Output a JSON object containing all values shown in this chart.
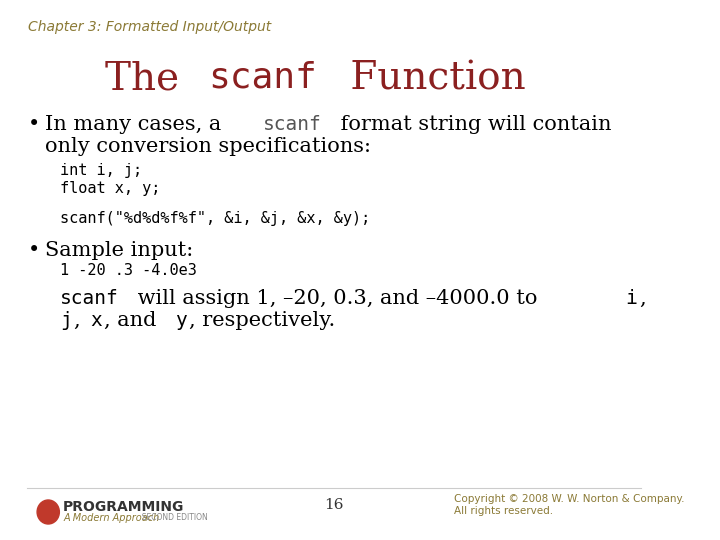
{
  "background_color": "#ffffff",
  "chapter_text": "Chapter 3: Formatted Input/Output",
  "chapter_color": "#8B7A36",
  "chapter_fontsize": 10,
  "title_normal": "The ",
  "title_code": "scanf",
  "title_normal2": " Function",
  "title_color": "#8B2020",
  "title_fontsize": 28,
  "bullet1_normal_parts": [
    {
      "text": "In many cases, a ",
      "style": "normal"
    },
    {
      "text": "scanf",
      "style": "code"
    },
    {
      "text": " format string will contain",
      "style": "normal"
    }
  ],
  "bullet1_line2": "only conversion specifications:",
  "code_block1": "int i, j;\nfloat x, y;",
  "code_block2": "scanf(\"%d%d%f%f\", &i, &j, &x, &y);",
  "bullet2_text": "Sample input:",
  "sample_input": "1 -20 .3 -4.0e3",
  "last_line_parts": [
    {
      "text": "scanf",
      "style": "code"
    },
    {
      "text": " will assign 1, –20, 0.3, and –4000.0 to ",
      "style": "normal"
    },
    {
      "text": "i",
      "style": "code"
    },
    {
      "text": ",",
      "style": "normal"
    }
  ],
  "last_line2_parts": [
    {
      "text": "j",
      "style": "code"
    },
    {
      "text": ", ",
      "style": "normal"
    },
    {
      "text": "x",
      "style": "code"
    },
    {
      "text": ", and ",
      "style": "normal"
    },
    {
      "text": "y",
      "style": "code"
    },
    {
      "text": ", respectively.",
      "style": "normal"
    }
  ],
  "footer_page": "16",
  "footer_copyright": "Copyright © 2008 W. W. Norton & Company.\nAll rights reserved.",
  "footer_color": "#8B7A36",
  "code_color": "#555555",
  "normal_text_color": "#000000",
  "mono_fontsize": 11,
  "body_fontsize": 15
}
